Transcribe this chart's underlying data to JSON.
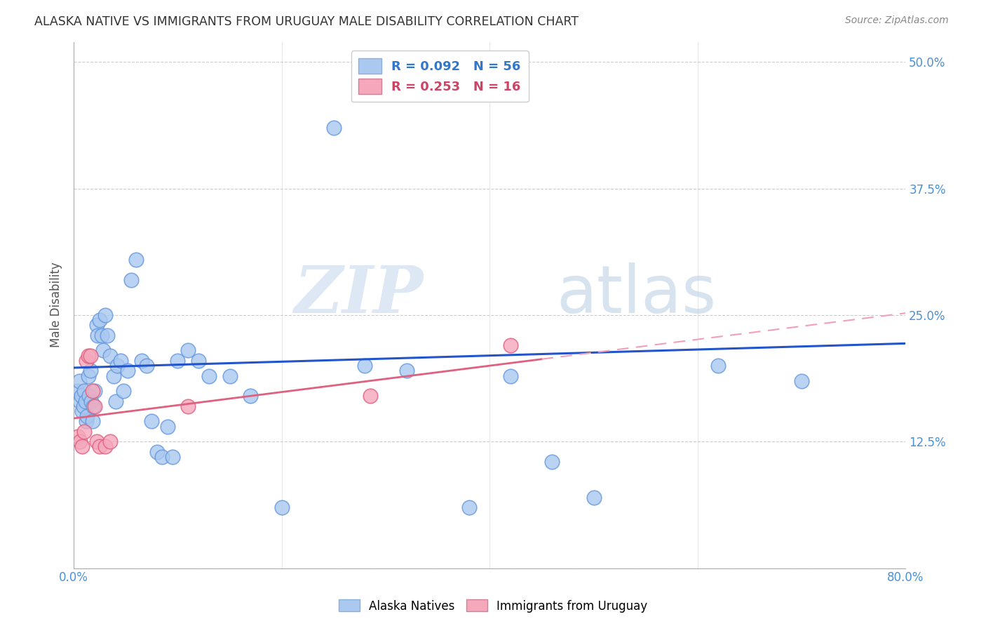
{
  "title": "ALASKA NATIVE VS IMMIGRANTS FROM URUGUAY MALE DISABILITY CORRELATION CHART",
  "source": "Source: ZipAtlas.com",
  "ylabel": "Male Disability",
  "xlim": [
    0.0,
    0.8
  ],
  "ylim": [
    0.0,
    0.52
  ],
  "yticks": [
    0.0,
    0.125,
    0.25,
    0.375,
    0.5
  ],
  "ytick_labels": [
    "",
    "12.5%",
    "25.0%",
    "37.5%",
    "50.0%"
  ],
  "xticks": [
    0.0,
    0.2,
    0.4,
    0.6,
    0.8
  ],
  "xtick_labels": [
    "0.0%",
    "",
    "",
    "",
    "80.0%"
  ],
  "watermark_zip": "ZIP",
  "watermark_atlas": "atlas",
  "alaska_color": "#aac8f0",
  "alaska_edge": "#6699dd",
  "uruguay_color": "#f5a8bc",
  "uruguay_edge": "#e06080",
  "line_alaska_color": "#2255cc",
  "line_uruguay_solid_color": "#e06080",
  "line_uruguay_dash_color": "#f0a0b8",
  "background_color": "#ffffff",
  "grid_color": "#cccccc",
  "alaska_points_x": [
    0.003,
    0.005,
    0.006,
    0.007,
    0.008,
    0.009,
    0.01,
    0.011,
    0.012,
    0.013,
    0.014,
    0.015,
    0.016,
    0.017,
    0.018,
    0.019,
    0.02,
    0.022,
    0.023,
    0.025,
    0.027,
    0.028,
    0.03,
    0.032,
    0.035,
    0.038,
    0.04,
    0.042,
    0.045,
    0.048,
    0.052,
    0.055,
    0.06,
    0.065,
    0.07,
    0.075,
    0.08,
    0.085,
    0.09,
    0.095,
    0.1,
    0.11,
    0.12,
    0.13,
    0.15,
    0.17,
    0.2,
    0.25,
    0.28,
    0.32,
    0.38,
    0.42,
    0.46,
    0.5,
    0.62,
    0.7
  ],
  "alaska_points_y": [
    0.175,
    0.185,
    0.165,
    0.17,
    0.155,
    0.16,
    0.175,
    0.165,
    0.145,
    0.15,
    0.19,
    0.17,
    0.195,
    0.165,
    0.145,
    0.16,
    0.175,
    0.24,
    0.23,
    0.245,
    0.23,
    0.215,
    0.25,
    0.23,
    0.21,
    0.19,
    0.165,
    0.2,
    0.205,
    0.175,
    0.195,
    0.285,
    0.305,
    0.205,
    0.2,
    0.145,
    0.115,
    0.11,
    0.14,
    0.11,
    0.205,
    0.215,
    0.205,
    0.19,
    0.19,
    0.17,
    0.06,
    0.435,
    0.2,
    0.195,
    0.06,
    0.19,
    0.105,
    0.07,
    0.2,
    0.185
  ],
  "uruguay_points_x": [
    0.004,
    0.006,
    0.008,
    0.01,
    0.012,
    0.014,
    0.016,
    0.018,
    0.02,
    0.022,
    0.025,
    0.03,
    0.035,
    0.11,
    0.285,
    0.42
  ],
  "uruguay_points_y": [
    0.13,
    0.125,
    0.12,
    0.135,
    0.205,
    0.21,
    0.21,
    0.175,
    0.16,
    0.125,
    0.12,
    0.12,
    0.125,
    0.16,
    0.17,
    0.22
  ],
  "alaska_R": 0.092,
  "alaska_N": 56,
  "uruguay_R": 0.253,
  "uruguay_N": 16,
  "alaska_line_intercept": 0.198,
  "alaska_line_slope": 0.03,
  "uruguay_line_intercept": 0.148,
  "uruguay_line_slope": 0.13
}
